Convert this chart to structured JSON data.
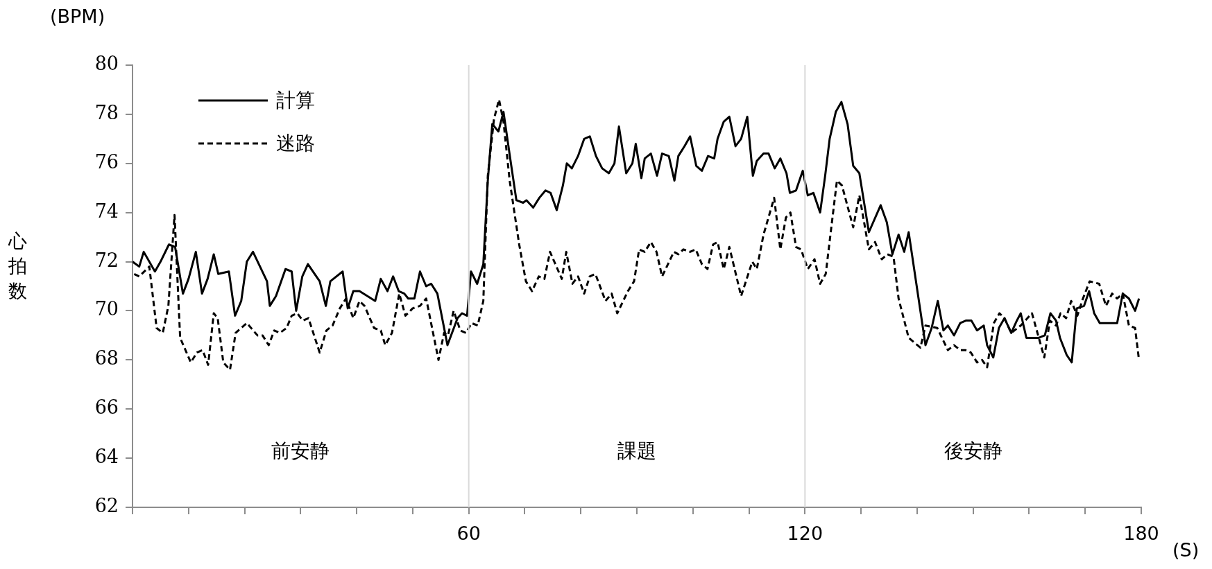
{
  "chart_data": {
    "type": "line",
    "xlabel": "(S)",
    "ylabel": "心拍数",
    "xlim": [
      0,
      180
    ],
    "ylim": [
      62,
      80
    ],
    "xticks": [
      {
        "value": 0,
        "label": null
      },
      {
        "value": 10,
        "label": null
      },
      {
        "value": 20,
        "label": null
      },
      {
        "value": 30,
        "label": null
      },
      {
        "value": 40,
        "label": null
      },
      {
        "value": 50,
        "label": null
      },
      60,
      {
        "value": 70,
        "label": null
      },
      {
        "value": 80,
        "label": null
      },
      {
        "value": 90,
        "label": null
      },
      {
        "value": 100,
        "label": null
      },
      {
        "value": 110,
        "label": null
      },
      120,
      {
        "value": 130,
        "label": null
      },
      {
        "value": 140,
        "label": null
      },
      {
        "value": 150,
        "label": null
      },
      {
        "value": 160,
        "label": null
      },
      {
        "value": 170,
        "label": null
      },
      180
    ],
    "yticks": [
      62,
      64,
      66,
      68,
      70,
      72,
      74,
      76,
      78,
      80
    ],
    "legend": "top left",
    "marker": "none",
    "ref_lines": [
      {
        "axis": "x",
        "value": 60,
        "color": "#d9d9d9"
      },
      {
        "axis": "x",
        "value": 120,
        "color": "#d9d9d9"
      }
    ],
    "annotations": [
      "(BPM)",
      "前安静",
      "課題",
      "後安静"
    ],
    "series": [
      {
        "name": "計算",
        "color": "#000000",
        "line_style": "solid",
        "x": [
          0,
          1.2,
          2,
          4,
          5,
          6.5,
          7.6,
          9,
          10,
          11.3,
          12.4,
          13.4,
          14.5,
          15.3,
          17.2,
          18.3,
          19.4,
          20.4,
          21.5,
          24,
          24.5,
          25.6,
          27.3,
          28.4,
          29.2,
          30.3,
          31.3,
          33.4,
          34.5,
          35.3,
          37.5,
          38.4,
          39.4,
          40.5,
          43.3,
          44.3,
          45.5,
          46.5,
          47.5,
          48.5,
          49.2,
          50.3,
          51.3,
          52.4,
          53.3,
          54.4,
          56.2,
          58,
          58.8,
          59.7,
          60.4,
          61.5,
          62.6,
          63.4,
          64.2,
          65.3,
          66.2,
          67.4,
          68.5,
          69.7,
          70.3,
          71.5,
          72.6,
          73.7,
          74.6,
          75.7,
          76.8,
          77.5,
          78.4,
          79.5,
          80.6,
          81.6,
          82.7,
          83.8,
          85,
          86,
          86.8,
          88.1,
          89.2,
          89.8,
          90.8,
          91.4,
          92.5,
          93.6,
          94.5,
          95.7,
          96.7,
          97.4,
          98.5,
          99.5,
          100.6,
          101.6,
          102.7,
          103.8,
          104.4,
          105.5,
          106.5,
          107.6,
          108.6,
          109.7,
          110.7,
          111.4,
          112.6,
          113.5,
          114.6,
          115.6,
          116.7,
          117.3,
          118.4,
          119.6,
          120.5,
          121.5,
          122.7,
          123.6,
          124.4,
          125.5,
          126.5,
          127.6,
          128.6,
          129.7,
          131.4,
          133.5,
          134.6,
          135.6,
          136.7,
          137.7,
          138.5,
          141.5,
          142.6,
          143.7,
          144.7,
          145.5,
          146.6,
          147.7,
          148.7,
          149.7,
          150.7,
          151.9,
          152.5,
          153.6,
          154.6,
          155.6,
          156.8,
          157.8,
          158.5,
          159.5,
          160.7,
          161.7,
          162.8,
          163.8,
          164.8,
          165.5,
          166.7,
          167.6,
          168.5,
          169.8,
          170.7,
          171.6,
          172.6,
          175.7,
          176.7,
          177.8,
          178.9,
          179.6
        ],
        "values": [
          72.0,
          71.8,
          72.4,
          71.6,
          72.0,
          72.7,
          72.6,
          70.7,
          71.3,
          72.4,
          70.7,
          71.3,
          72.3,
          71.5,
          71.6,
          69.8,
          70.4,
          72.0,
          72.4,
          71.2,
          70.2,
          70.6,
          71.7,
          71.6,
          70.0,
          71.4,
          71.9,
          71.2,
          70.2,
          71.2,
          71.6,
          70.1,
          70.8,
          70.8,
          70.4,
          71.3,
          70.8,
          71.4,
          70.8,
          70.7,
          70.5,
          70.5,
          71.6,
          71.0,
          71.1,
          70.7,
          68.6,
          69.7,
          69.9,
          69.8,
          71.6,
          71.1,
          71.9,
          75.3,
          77.6,
          77.3,
          78.1,
          76.2,
          74.5,
          74.4,
          74.5,
          74.2,
          74.6,
          74.9,
          74.8,
          74.1,
          75.1,
          76.0,
          75.8,
          76.3,
          77.0,
          77.1,
          76.3,
          75.8,
          75.6,
          76.0,
          77.5,
          75.6,
          76.0,
          76.8,
          75.4,
          76.2,
          76.4,
          75.5,
          76.4,
          76.3,
          75.3,
          76.3,
          76.7,
          77.1,
          75.9,
          75.7,
          76.3,
          76.2,
          77.0,
          77.7,
          77.9,
          76.7,
          77.0,
          77.9,
          75.5,
          76.1,
          76.4,
          76.4,
          75.8,
          76.2,
          75.6,
          74.8,
          74.9,
          75.7,
          74.7,
          74.8,
          74.0,
          75.5,
          77.0,
          78.1,
          78.5,
          77.6,
          75.9,
          75.6,
          73.2,
          74.3,
          73.6,
          72.3,
          73.1,
          72.4,
          73.2,
          68.6,
          69.3,
          70.4,
          69.2,
          69.4,
          69.0,
          69.5,
          69.6,
          69.6,
          69.2,
          69.4,
          68.6,
          68.1,
          69.3,
          69.7,
          69.1,
          69.6,
          69.9,
          68.9,
          68.9,
          68.9,
          69.0,
          69.9,
          69.6,
          68.9,
          68.2,
          67.9,
          70.1,
          70.2,
          70.8,
          69.9,
          69.5,
          69.5,
          70.7,
          70.5,
          70.0,
          70.5
        ]
      },
      {
        "name": "迷路",
        "color": "#000000",
        "line_style": "dashed",
        "x": [
          0.3,
          1.2,
          3,
          4.3,
          5.4,
          6.4,
          7.5,
          8.5,
          10.4,
          11.5,
          12.5,
          13.5,
          14.5,
          15.2,
          16.2,
          17.4,
          18.4,
          20.4,
          22.3,
          23.2,
          24.3,
          25.3,
          26.3,
          27.5,
          28.4,
          29.4,
          30.4,
          31.4,
          33.4,
          34.6,
          35.7,
          37,
          38.1,
          39.4,
          40.5,
          41.4,
          43.1,
          44.3,
          45.1,
          46.3,
          47.6,
          48.7,
          50,
          51.3,
          52.4,
          54.6,
          55.6,
          56.3,
          57.3,
          58.5,
          59.5,
          60.5,
          61.6,
          62.6,
          63.4,
          64.5,
          65.4,
          66.2,
          67.3,
          69,
          70.2,
          71.3,
          72.5,
          73.5,
          74.5,
          76.6,
          77.4,
          78.5,
          79.5,
          80.6,
          81.6,
          82.6,
          84.4,
          85.5,
          86.5,
          88.4,
          89.5,
          90.4,
          91.4,
          92.5,
          93.5,
          94.5,
          96.6,
          97.4,
          98.3,
          99.5,
          100.5,
          101.6,
          102.6,
          103.6,
          104.4,
          105.5,
          106.5,
          108.6,
          110.6,
          111.4,
          112.6,
          114.5,
          115.6,
          116.6,
          117.4,
          118.4,
          119.3,
          120.5,
          121.7,
          122.7,
          123.7,
          125.7,
          126.6,
          128.6,
          129.7,
          131.4,
          132.5,
          133.7,
          134.7,
          135.8,
          136.7,
          138.5,
          140.6,
          141.5,
          143.6,
          145.5,
          146.6,
          147.7,
          148.6,
          149.6,
          150.7,
          151.6,
          152.5,
          153.7,
          154.7,
          155.6,
          156.8,
          158.5,
          160.5,
          162.7,
          163.7,
          164.8,
          165.6,
          166.6,
          167.5,
          168.6,
          169.6,
          170.8,
          172.5,
          173.7,
          174.8,
          175.7,
          176.7,
          177.8,
          178.9,
          179.6
        ],
        "values": [
          71.5,
          71.4,
          71.8,
          69.3,
          69.1,
          70.2,
          73.9,
          68.9,
          67.9,
          68.3,
          68.4,
          67.8,
          69.9,
          69.7,
          67.9,
          67.6,
          69.1,
          69.5,
          69.0,
          69.0,
          68.6,
          69.2,
          69.1,
          69.3,
          69.8,
          69.9,
          69.6,
          69.7,
          68.3,
          69.2,
          69.4,
          70.1,
          70.5,
          69.7,
          70.4,
          70.2,
          69.3,
          69.2,
          68.6,
          69.1,
          70.7,
          69.8,
          70.1,
          70.2,
          70.5,
          68.0,
          69.1,
          69.0,
          70.0,
          69.2,
          69.1,
          69.5,
          69.4,
          70.4,
          75.5,
          77.8,
          78.6,
          77.7,
          75.3,
          72.7,
          71.2,
          70.8,
          71.4,
          71.3,
          72.4,
          71.3,
          72.4,
          71.1,
          71.4,
          70.7,
          71.4,
          71.5,
          70.4,
          70.7,
          69.9,
          70.8,
          71.2,
          72.5,
          72.4,
          72.8,
          72.4,
          71.4,
          72.4,
          72.3,
          72.5,
          72.4,
          72.5,
          71.9,
          71.7,
          72.7,
          72.8,
          71.7,
          72.6,
          70.6,
          72.0,
          71.7,
          73.1,
          74.6,
          72.5,
          73.8,
          74.0,
          72.6,
          72.5,
          71.7,
          72.1,
          71.1,
          71.5,
          75.3,
          75.1,
          73.4,
          74.7,
          72.5,
          72.8,
          72.1,
          72.3,
          72.2,
          70.5,
          68.9,
          68.5,
          69.4,
          69.3,
          68.4,
          68.6,
          68.4,
          68.4,
          68.3,
          67.9,
          68.0,
          67.7,
          69.5,
          69.9,
          69.7,
          69.1,
          69.4,
          69.9,
          68.1,
          69.6,
          69.4,
          69.9,
          69.7,
          70.4,
          69.8,
          70.5,
          71.2,
          71.1,
          70.2,
          70.7,
          70.5,
          70.7,
          69.4,
          69.3,
          68.0
        ]
      }
    ]
  }
}
